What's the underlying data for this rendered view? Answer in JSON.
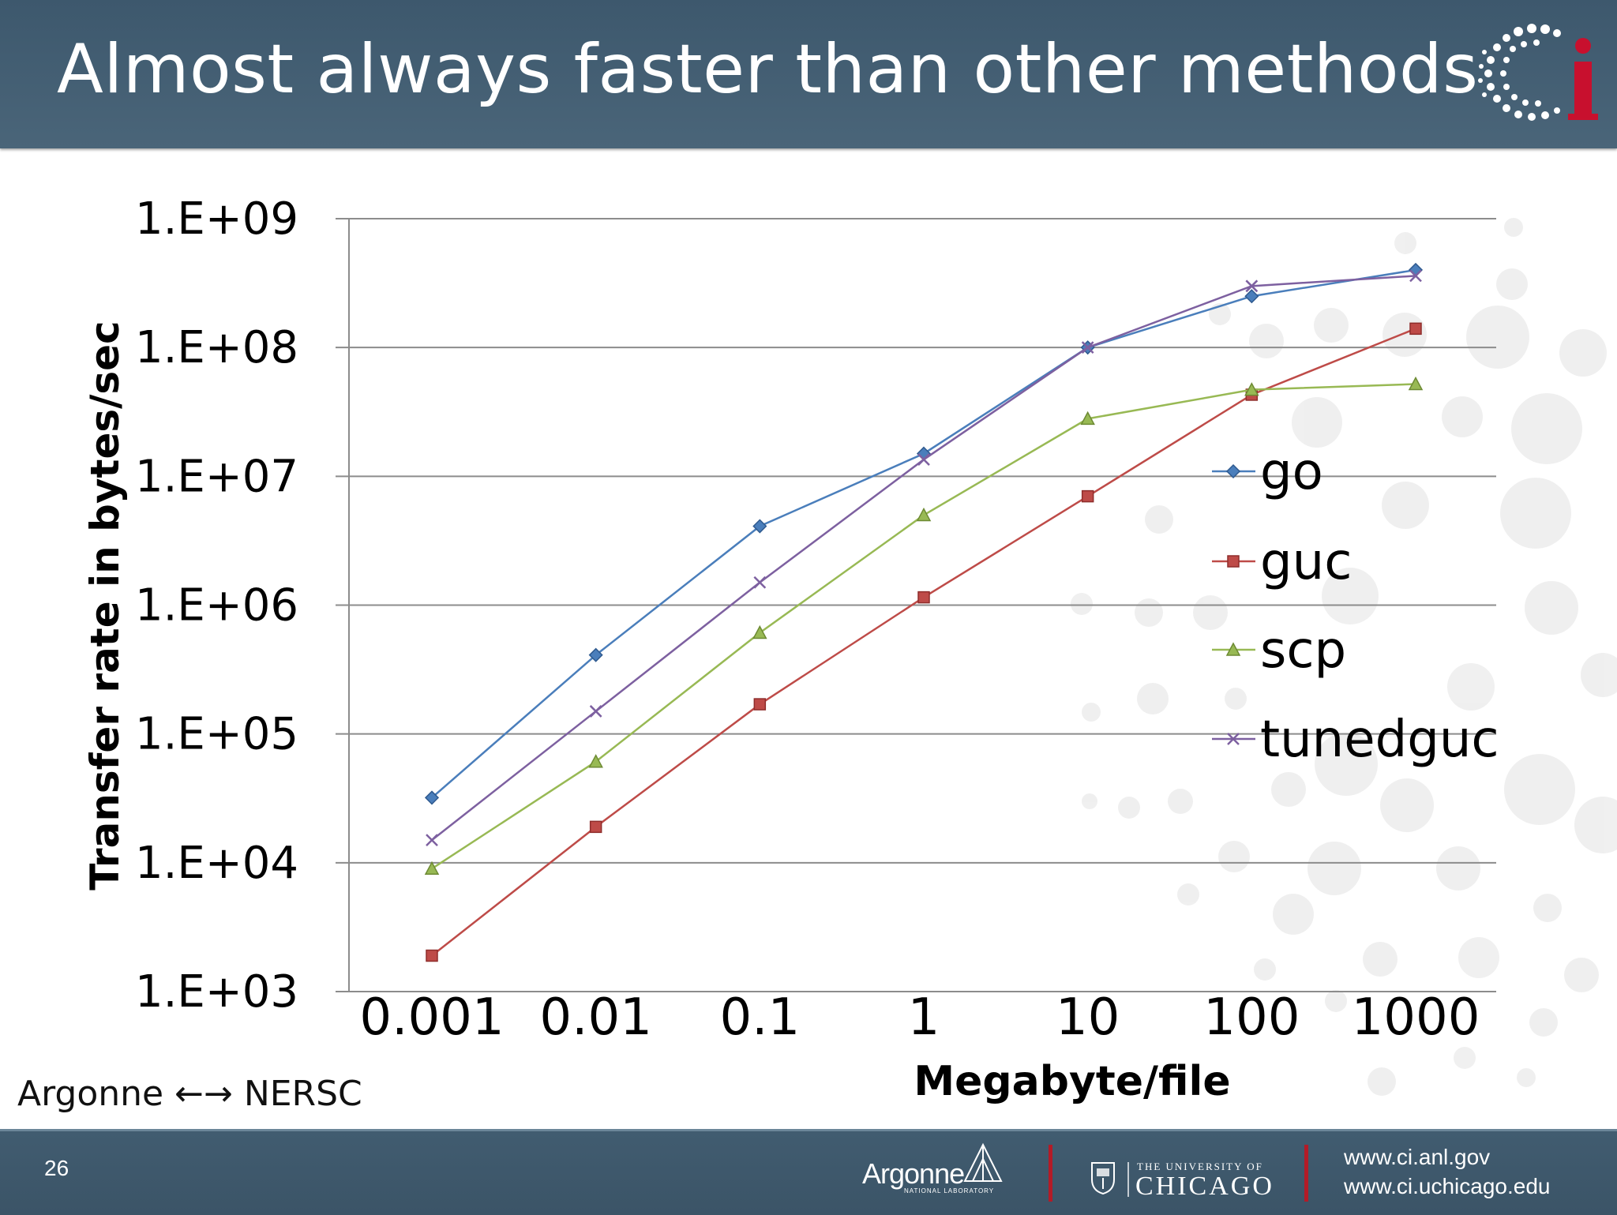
{
  "slide": {
    "title": "Almost always faster than other methods",
    "number": "26",
    "route": "Argonne ←→ NERSC",
    "footer": {
      "argonne": "Argonne",
      "argonne_sub": "NATIONAL LABORATORY",
      "uchicago_small": "THE UNIVERSITY OF",
      "uchicago_big": "CHICAGO",
      "url1": "www.ci.anl.gov",
      "url2": "www.ci.uchicago.edu"
    },
    "logo_text": "Ci"
  },
  "colors": {
    "header": "#46607a",
    "go": "#4a7ebb",
    "guc": "#be4b48",
    "scp": "#98b954",
    "tunedguc": "#7d60a0",
    "accent_red": "#b31b27"
  },
  "chart_data": {
    "type": "line",
    "title": "",
    "xlabel": "Megabyte/file",
    "ylabel": "Transfer rate in bytes/sec",
    "yscale": "log",
    "ylim": [
      1000,
      1000000000
    ],
    "categories": [
      "0.001",
      "0.01",
      "0.1",
      "1",
      "10",
      "100",
      "1000"
    ],
    "ytick_labels": [
      "1.E+03",
      "1.E+04",
      "1.E+05",
      "1.E+06",
      "1.E+07",
      "1.E+08",
      "1.E+09"
    ],
    "legend_position": "right",
    "series": [
      {
        "name": "go",
        "marker": "diamond",
        "values": [
          32000,
          410000,
          4100000,
          15000000,
          100000000,
          250000000,
          400000000
        ]
      },
      {
        "name": "guc",
        "marker": "square",
        "values": [
          1900,
          19000,
          170000,
          1150000,
          7000000,
          43000000,
          140000000
        ]
      },
      {
        "name": "scp",
        "marker": "triangle",
        "values": [
          9000,
          61000,
          610000,
          5000000,
          28000000,
          47000000,
          52000000
        ]
      },
      {
        "name": "tunedguc",
        "marker": "x",
        "values": [
          15000,
          150000,
          1500000,
          13500000,
          100000000,
          300000000,
          360000000
        ]
      }
    ]
  }
}
